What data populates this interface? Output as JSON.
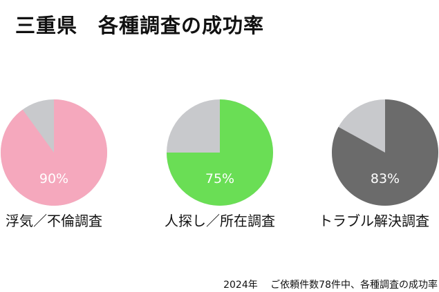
{
  "title": "三重県　各種調査の成功率",
  "footnote": "2024年　 ご依頼件数78件中、各種調査の成功率",
  "chart_data": [
    {
      "type": "pie",
      "category": "浮気／不倫調査",
      "value": 90,
      "label": "90%",
      "color": "#f5a8bd",
      "rest_color": "#c8c9cc"
    },
    {
      "type": "pie",
      "category": "人探し／所在調査",
      "value": 75,
      "label": "75%",
      "color": "#6ade55",
      "rest_color": "#c8c9cc"
    },
    {
      "type": "pie",
      "category": "トラブル解決調査",
      "value": 83,
      "label": "83%",
      "color": "#6b6b6b",
      "rest_color": "#c8c9cc"
    }
  ]
}
